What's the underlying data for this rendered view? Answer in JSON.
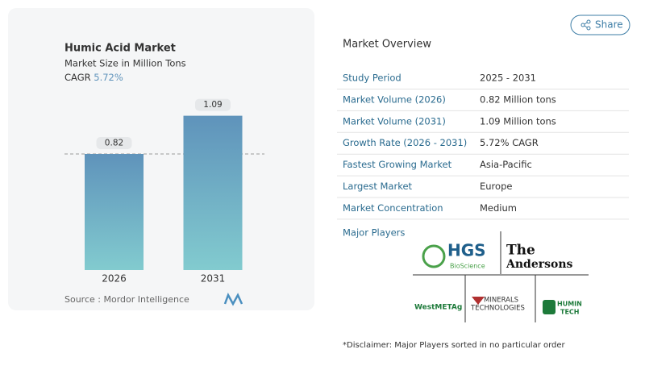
{
  "chart_data": {
    "type": "bar",
    "title": "Humic Acid Market",
    "subtitle": "Market Size in Million Tons",
    "cagr_label": "CAGR",
    "cagr_value": "5.72%",
    "categories": [
      "2026",
      "2031"
    ],
    "values": [
      0.82,
      1.09
    ],
    "color": "#5f93bb",
    "ylim": [
      0,
      1.25
    ],
    "source": "Source :  Mordor Intelligence"
  },
  "share_button": "Share",
  "overview": {
    "title": "Market Overview",
    "rows": [
      [
        "Study Period",
        "2025 - 2031"
      ],
      [
        "Market Volume (2026)",
        "0.82 Million tons"
      ],
      [
        "Market Volume (2031)",
        "1.09 Million tons"
      ],
      [
        "Growth Rate (2026 - 2031)",
        "5.72% CAGR"
      ],
      [
        "Fastest Growing Market",
        "Asia-Pacific"
      ],
      [
        "Largest Market",
        "Europe"
      ],
      [
        "Market Concentration",
        "Medium"
      ]
    ],
    "players_title": "Major Players",
    "players": [
      "HGS",
      "BioScience",
      "The",
      "Andersons",
      "WestMETAg",
      "MINERALS",
      "TECHNOLOGIES",
      "HUMIN",
      "TECH"
    ]
  },
  "disclaimer": "*Disclaimer: Major Players sorted in no particular order"
}
